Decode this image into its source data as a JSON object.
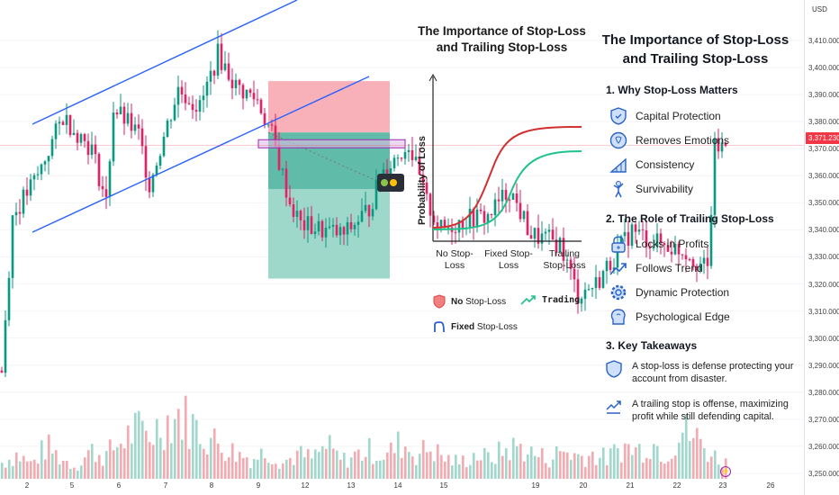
{
  "currency": "USD",
  "current_price": "3,371.230",
  "colors": {
    "up": "#089981",
    "down": "#f23645",
    "channel": "#2962ff",
    "last_price": "#f23645"
  },
  "price_axis": [
    "3,410.000",
    "3,400.000",
    "3,390.000",
    "3,380.000",
    "3,370.000",
    "3,360.000",
    "3,350.000",
    "3,340.000",
    "3,330.000",
    "3,320.000",
    "3,310.000",
    "3,300.000",
    "3,290.000",
    "3,280.000",
    "3,270.000",
    "3,260.000",
    "3,250.000"
  ],
  "time_axis": [
    "2",
    "5",
    "6",
    "7",
    "8",
    "9",
    "12",
    "13",
    "14",
    "15",
    "19",
    "20",
    "21",
    "22",
    "23",
    "26"
  ],
  "middle_graphic": {
    "title": "The Importance of Stop-Loss and Trailing Stop-Loss",
    "y_axis_label": "Probability of Loss",
    "x_labels": [
      "No Stop-Loss",
      "Fixed Stop-Loss",
      "Trailing Stop-Loss"
    ],
    "legend": {
      "no_sl_bold": "No",
      "no_sl": "Stop-Loss",
      "trading": "Trading",
      "fixed_bold": "Fixed",
      "fixed": "Stop-Loss"
    }
  },
  "panel": {
    "title": "The Importance of Stop-Loss and Trailing Stop-Loss",
    "section1": {
      "heading": "1. Why Stop-Loss Matters",
      "items": [
        "Capital Protection",
        "Removes Emotions",
        "Consistency",
        "Survivability"
      ]
    },
    "section2": {
      "heading": "2. The Role of Trailing Stop-Loss",
      "items": [
        "Locks in Profits",
        "Follows Trend",
        "Dynamic Protection",
        "Psychological Edge"
      ]
    },
    "section3": {
      "heading": "3. Key Takeaways",
      "items": [
        "A stop-loss is defense protecting your account from disaster.",
        "A trailing stop is offense, maximizing profit while still defending capital."
      ]
    }
  },
  "chart_data": {
    "type": "candlestick",
    "title": "",
    "ylabel": "USD",
    "ylim": [
      3250,
      3410
    ],
    "x_ticks": [
      "2",
      "5",
      "6",
      "7",
      "8",
      "9",
      "12",
      "13",
      "14",
      "15",
      "19",
      "20",
      "21",
      "22",
      "23",
      "26"
    ],
    "last_price": 3371.23,
    "close_keypoints": [
      [
        0,
        3288
      ],
      [
        3,
        3345
      ],
      [
        10,
        3360
      ],
      [
        17,
        3382
      ],
      [
        25,
        3370
      ],
      [
        29,
        3350
      ],
      [
        31,
        3385
      ],
      [
        38,
        3375
      ],
      [
        41,
        3357
      ],
      [
        49,
        3392
      ],
      [
        55,
        3385
      ],
      [
        60,
        3405
      ],
      [
        65,
        3393
      ],
      [
        71,
        3388
      ],
      [
        75,
        3375
      ],
      [
        80,
        3350
      ],
      [
        83,
        3342
      ],
      [
        95,
        3338
      ],
      [
        102,
        3348
      ],
      [
        106,
        3362
      ],
      [
        113,
        3372
      ],
      [
        118,
        3350
      ],
      [
        122,
        3340
      ],
      [
        129,
        3344
      ],
      [
        135,
        3345
      ],
      [
        141,
        3355
      ],
      [
        147,
        3338
      ],
      [
        155,
        3335
      ],
      [
        160,
        3316
      ],
      [
        165,
        3320
      ],
      [
        170,
        3330
      ],
      [
        175,
        3340
      ],
      [
        180,
        3336
      ],
      [
        190,
        3332
      ],
      [
        196,
        3325
      ],
      [
        198,
        3370
      ],
      [
        201,
        3371
      ]
    ],
    "volume_keypoints": [
      20,
      30,
      18,
      40,
      25,
      15,
      35,
      28,
      45,
      60,
      55,
      70,
      80,
      65,
      50,
      40,
      30,
      25,
      35,
      20,
      30,
      25,
      40,
      22,
      30,
      35,
      28,
      45,
      30,
      38,
      25,
      20,
      30,
      25,
      35,
      40,
      30,
      25,
      35,
      28,
      30,
      25,
      40,
      35,
      45,
      30,
      60,
      50,
      30,
      20
    ],
    "annotations": {
      "channel": "ascending",
      "position": {
        "stop_loss": 3395,
        "entry": 3376,
        "target": 3322
      },
      "zone": [
        3368,
        3372
      ]
    }
  }
}
